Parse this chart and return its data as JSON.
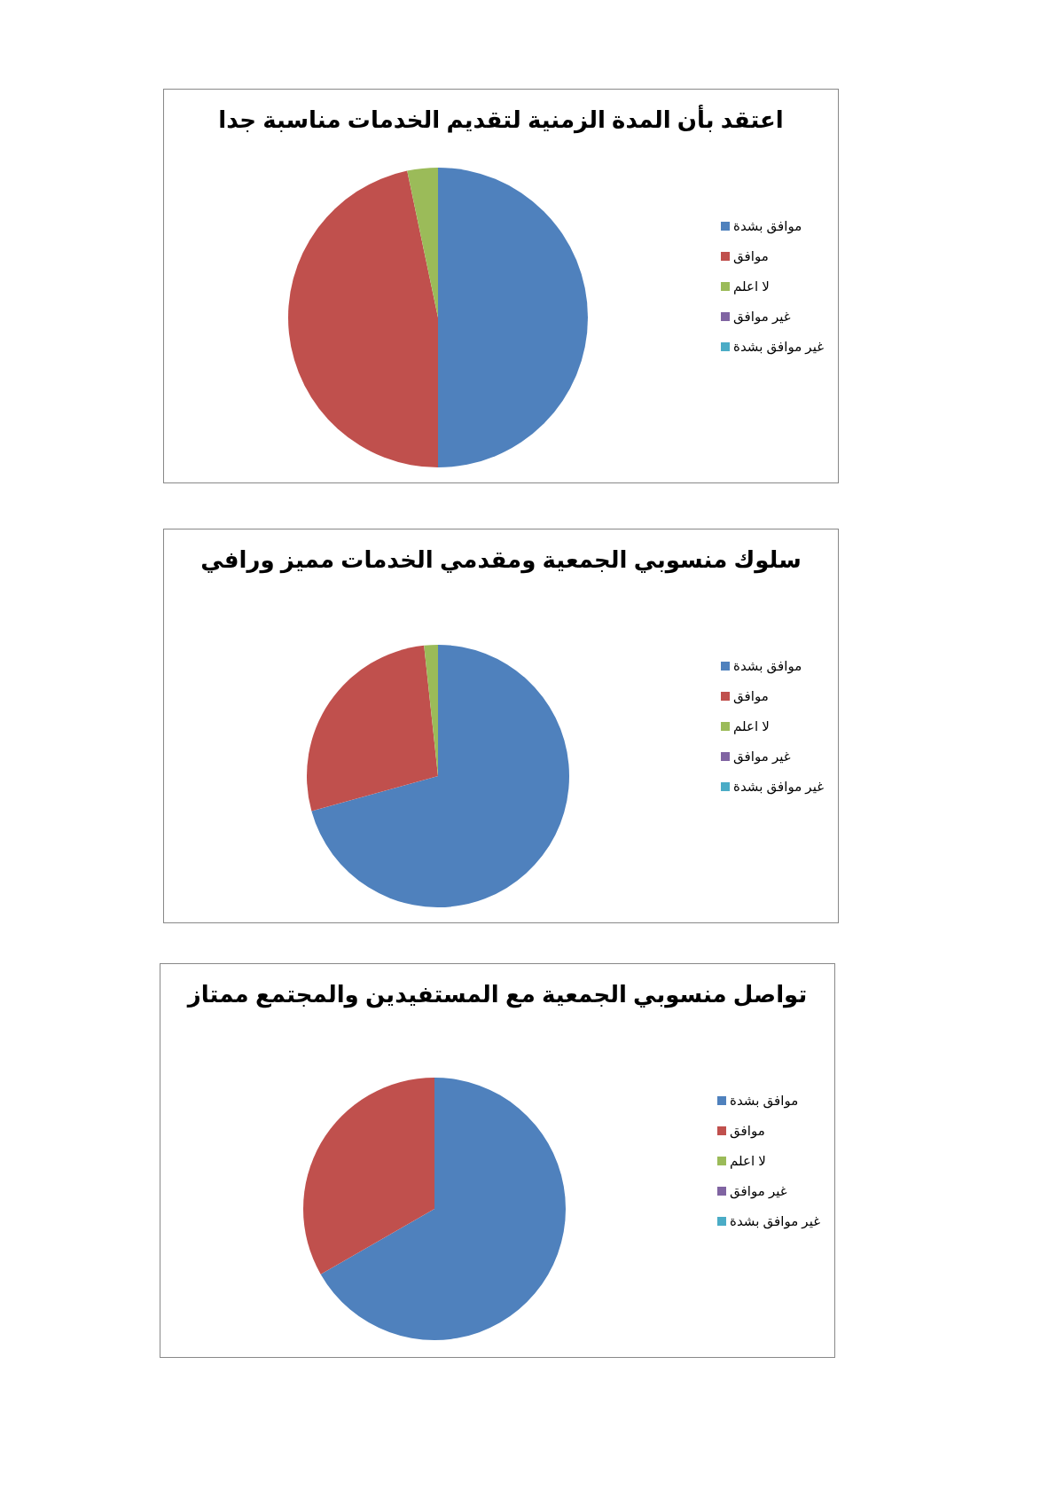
{
  "chart_data": [
    {
      "type": "pie",
      "title": "اعتقد بأن المدة الزمنية لتقديم الخدمات مناسبة جدا",
      "categories": [
        "موافق بشدة",
        "موافق",
        "لا اعلم",
        "غير موافق",
        "غير موافق بشدة"
      ],
      "values": [
        50,
        46.7,
        3.3,
        0,
        0
      ],
      "colors": [
        "#4f81bd",
        "#c0504d",
        "#9bbb59",
        "#8064a2",
        "#4bacc6"
      ],
      "legend": "right"
    },
    {
      "type": "pie",
      "title": "سلوك منسوبي الجمعية ومقدمي الخدمات مميز ورافي",
      "categories": [
        "موافق بشدة",
        "موافق",
        "لا اعلم",
        "غير موافق",
        "غير موافق بشدة"
      ],
      "values": [
        70.7,
        27.6,
        1.7,
        0,
        0
      ],
      "colors": [
        "#4f81bd",
        "#c0504d",
        "#9bbb59",
        "#8064a2",
        "#4bacc6"
      ],
      "legend": "right"
    },
    {
      "type": "pie",
      "title": "تواصل منسوبي الجمعية مع المستفيدين والمجتمع ممتاز",
      "categories": [
        "موافق بشدة",
        "موافق",
        "لا اعلم",
        "غير موافق",
        "غير موافق بشدة"
      ],
      "values": [
        66.7,
        33.3,
        0,
        0,
        0
      ],
      "colors": [
        "#4f81bd",
        "#c0504d",
        "#9bbb59",
        "#8064a2",
        "#4bacc6"
      ],
      "legend": "right"
    }
  ]
}
